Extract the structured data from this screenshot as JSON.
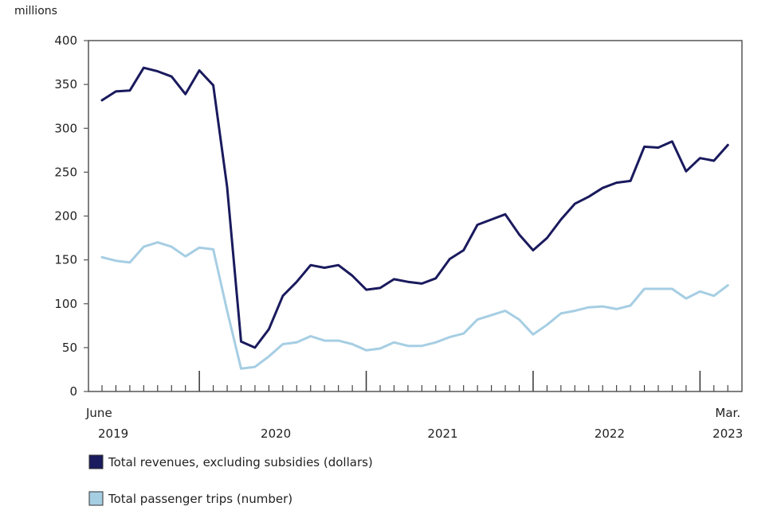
{
  "chart_data": {
    "type": "line",
    "title": "",
    "xlabel": "",
    "ylabel": "millions",
    "ylim": [
      0,
      400
    ],
    "yticks": [
      0,
      50,
      100,
      150,
      200,
      250,
      300,
      350,
      400
    ],
    "grid": false,
    "legend_position": "bottom-left",
    "x_start_label": [
      "June",
      "2019"
    ],
    "x_end_label": [
      "Mar.",
      "2023"
    ],
    "year_labels": [
      "2020",
      "2021",
      "2022"
    ],
    "x": [
      "2019-06",
      "2019-07",
      "2019-08",
      "2019-09",
      "2019-10",
      "2019-11",
      "2019-12",
      "2020-01",
      "2020-02",
      "2020-03",
      "2020-04",
      "2020-05",
      "2020-06",
      "2020-07",
      "2020-08",
      "2020-09",
      "2020-10",
      "2020-11",
      "2020-12",
      "2021-01",
      "2021-02",
      "2021-03",
      "2021-04",
      "2021-05",
      "2021-06",
      "2021-07",
      "2021-08",
      "2021-09",
      "2021-10",
      "2021-11",
      "2021-12",
      "2022-01",
      "2022-02",
      "2022-03",
      "2022-04",
      "2022-05",
      "2022-06",
      "2022-07",
      "2022-08",
      "2022-09",
      "2022-10",
      "2022-11",
      "2022-12",
      "2023-01",
      "2023-02",
      "2023-03"
    ],
    "series": [
      {
        "name": "Total revenues, excluding subsidies (dollars)",
        "color": "#1a1a5e",
        "values": [
          332,
          342,
          343,
          369,
          365,
          359,
          339,
          366,
          349,
          233,
          57,
          50,
          71,
          109,
          125,
          144,
          141,
          144,
          132,
          116,
          118,
          128,
          125,
          123,
          129,
          151,
          161,
          190,
          196,
          202,
          179,
          161,
          175,
          196,
          214,
          222,
          232,
          238,
          240,
          279,
          278,
          285,
          251,
          266,
          263,
          281
        ]
      },
      {
        "name": "Total passenger trips (number)",
        "color": "#a6cee3",
        "values": [
          153,
          149,
          147,
          165,
          170,
          165,
          154,
          164,
          162,
          92,
          26,
          28,
          40,
          54,
          56,
          63,
          58,
          58,
          54,
          47,
          49,
          56,
          52,
          52,
          56,
          62,
          66,
          82,
          87,
          92,
          82,
          65,
          76,
          89,
          92,
          96,
          97,
          94,
          98,
          117,
          117,
          117,
          106,
          114,
          109,
          121
        ]
      }
    ]
  }
}
